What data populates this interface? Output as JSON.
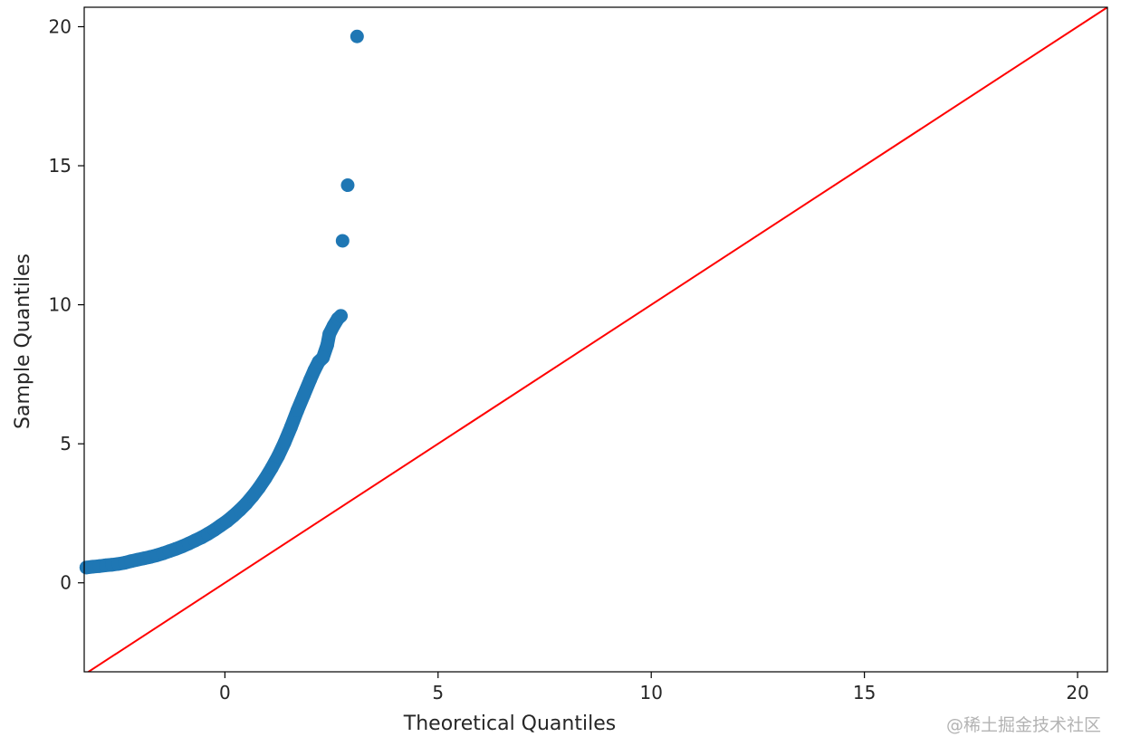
{
  "chart_data": {
    "type": "scatter",
    "title": "",
    "xlabel": "Theoretical Quantiles",
    "ylabel": "Sample Quantiles",
    "xlim": [
      -3.3,
      20.7
    ],
    "ylim": [
      -3.2,
      20.7
    ],
    "xticks": [
      0,
      5,
      10,
      15,
      20
    ],
    "yticks": [
      0,
      5,
      10,
      15,
      20
    ],
    "grid": false,
    "series": [
      {
        "marker_color": "#1f77b4",
        "points": [
          [
            -3.25,
            0.55
          ],
          [
            -3.1,
            0.58
          ],
          [
            -2.95,
            0.6
          ],
          [
            -2.8,
            0.63
          ],
          [
            -2.65,
            0.65
          ],
          [
            -2.5,
            0.68
          ],
          [
            -2.35,
            0.72
          ],
          [
            -2.2,
            0.78
          ],
          [
            -2.05,
            0.83
          ],
          [
            -1.9,
            0.88
          ],
          [
            -1.75,
            0.93
          ],
          [
            -1.6,
            0.99
          ],
          [
            -1.45,
            1.06
          ],
          [
            -1.3,
            1.14
          ],
          [
            -1.15,
            1.22
          ],
          [
            -1.0,
            1.31
          ],
          [
            -0.85,
            1.41
          ],
          [
            -0.7,
            1.52
          ],
          [
            -0.55,
            1.63
          ],
          [
            -0.4,
            1.76
          ],
          [
            -0.25,
            1.9
          ],
          [
            -0.1,
            2.06
          ],
          [
            0.05,
            2.22
          ],
          [
            0.2,
            2.41
          ],
          [
            0.35,
            2.62
          ],
          [
            0.5,
            2.85
          ],
          [
            0.65,
            3.12
          ],
          [
            0.8,
            3.42
          ],
          [
            0.95,
            3.76
          ],
          [
            1.1,
            4.14
          ],
          [
            1.25,
            4.56
          ],
          [
            1.4,
            5.05
          ],
          [
            1.55,
            5.6
          ],
          [
            1.7,
            6.2
          ],
          [
            1.85,
            6.75
          ],
          [
            2.0,
            7.3
          ],
          [
            2.1,
            7.65
          ],
          [
            2.2,
            7.95
          ],
          [
            2.3,
            8.1
          ],
          [
            2.4,
            8.55
          ],
          [
            2.45,
            8.95
          ],
          [
            2.55,
            9.25
          ],
          [
            2.65,
            9.5
          ],
          [
            2.72,
            9.6
          ],
          [
            2.76,
            12.3
          ],
          [
            2.88,
            14.3
          ],
          [
            3.1,
            19.65
          ]
        ]
      }
    ],
    "reference_line": {
      "from": [
        -3.3,
        -3.3
      ],
      "to": [
        20.7,
        20.7
      ],
      "color": "#ff0000"
    }
  },
  "watermark": "@稀土掘金技术社区"
}
